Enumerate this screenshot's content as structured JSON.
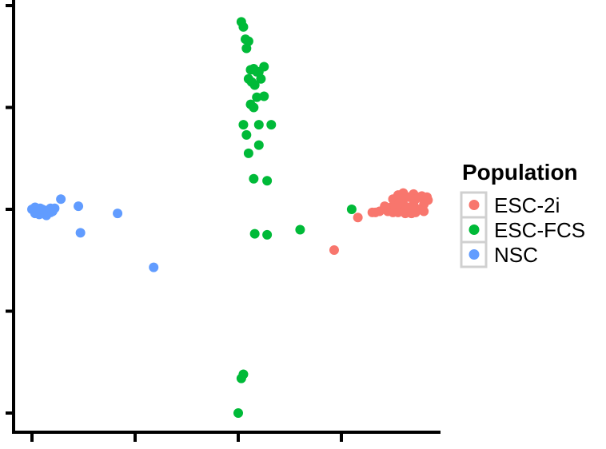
{
  "chart_data": {
    "type": "scatter",
    "title": "",
    "xlabel": "",
    "ylabel": "",
    "xlim": [
      -0.1,
      4.05
    ],
    "ylim": [
      -0.2,
      4.1
    ],
    "x_ticks": [
      0,
      1,
      2,
      3
    ],
    "y_ticks": [
      0,
      1,
      2,
      3,
      4
    ],
    "grid": false,
    "legend": {
      "title": "Population",
      "position": "right"
    },
    "series": [
      {
        "name": "ESC-2i",
        "color": "#F8766D",
        "points": [
          [
            2.93,
            1.6
          ],
          [
            3.16,
            1.92
          ],
          [
            3.3,
            1.97
          ],
          [
            3.33,
            1.97
          ],
          [
            3.37,
            1.98
          ],
          [
            3.42,
            2.03
          ],
          [
            3.45,
            1.98
          ],
          [
            3.48,
            2.02
          ],
          [
            3.5,
            1.97
          ],
          [
            3.52,
            2.03
          ],
          [
            3.55,
            1.97
          ],
          [
            3.58,
            2.0
          ],
          [
            3.6,
            2.05
          ],
          [
            3.62,
            1.96
          ],
          [
            3.5,
            2.1
          ],
          [
            3.55,
            2.14
          ],
          [
            3.6,
            2.16
          ],
          [
            3.62,
            2.12
          ],
          [
            3.65,
            2.12
          ],
          [
            3.67,
            2.12
          ],
          [
            3.7,
            2.15
          ],
          [
            3.72,
            2.1
          ],
          [
            3.75,
            2.12
          ],
          [
            3.78,
            2.13
          ],
          [
            3.8,
            2.11
          ],
          [
            3.83,
            2.12
          ],
          [
            3.84,
            2.09
          ],
          [
            3.8,
            2.05
          ],
          [
            3.8,
            1.98
          ],
          [
            3.72,
            1.97
          ],
          [
            3.68,
            1.96
          ],
          [
            3.75,
            2.0
          ],
          [
            3.7,
            2.05
          ],
          [
            3.65,
            2.02
          ],
          [
            3.56,
            2.06
          ]
        ]
      },
      {
        "name": "ESC-FCS",
        "color": "#00BA38",
        "points": [
          [
            2.03,
            3.84
          ],
          [
            2.05,
            3.79
          ],
          [
            2.07,
            3.67
          ],
          [
            2.1,
            3.65
          ],
          [
            2.08,
            3.58
          ],
          [
            2.12,
            3.37
          ],
          [
            2.15,
            3.38
          ],
          [
            2.18,
            3.35
          ],
          [
            2.2,
            3.35
          ],
          [
            2.22,
            3.28
          ],
          [
            2.25,
            3.4
          ],
          [
            2.1,
            3.28
          ],
          [
            2.13,
            3.25
          ],
          [
            2.16,
            3.22
          ],
          [
            2.18,
            3.1
          ],
          [
            2.25,
            3.11
          ],
          [
            2.12,
            3.03
          ],
          [
            2.15,
            3.0
          ],
          [
            2.05,
            2.83
          ],
          [
            2.2,
            2.83
          ],
          [
            2.32,
            2.83
          ],
          [
            2.08,
            2.73
          ],
          [
            2.2,
            2.63
          ],
          [
            2.1,
            2.55
          ],
          [
            2.15,
            2.3
          ],
          [
            2.28,
            2.28
          ],
          [
            2.16,
            1.76
          ],
          [
            2.28,
            1.75
          ],
          [
            2.6,
            1.8
          ],
          [
            3.1,
            2.0
          ],
          [
            2.05,
            0.38
          ],
          [
            2.03,
            0.34
          ],
          [
            2.0,
            0.0
          ]
        ]
      },
      {
        "name": "NSC",
        "color": "#619CFF",
        "points": [
          [
            0.0,
            2.0
          ],
          [
            0.03,
            2.02
          ],
          [
            0.05,
            1.98
          ],
          [
            0.08,
            2.01
          ],
          [
            0.1,
            1.96
          ],
          [
            0.12,
            1.99
          ],
          [
            0.15,
            1.97
          ],
          [
            0.18,
            1.97
          ],
          [
            0.2,
            1.98
          ],
          [
            0.22,
            2.01
          ],
          [
            0.03,
            1.96
          ],
          [
            0.07,
            1.95
          ],
          [
            0.1,
            2.0
          ],
          [
            0.14,
            1.94
          ],
          [
            0.18,
            2.01
          ],
          [
            0.28,
            2.1
          ],
          [
            0.45,
            2.03
          ],
          [
            0.47,
            1.77
          ],
          [
            0.83,
            1.96
          ],
          [
            1.18,
            1.43
          ]
        ]
      }
    ]
  }
}
